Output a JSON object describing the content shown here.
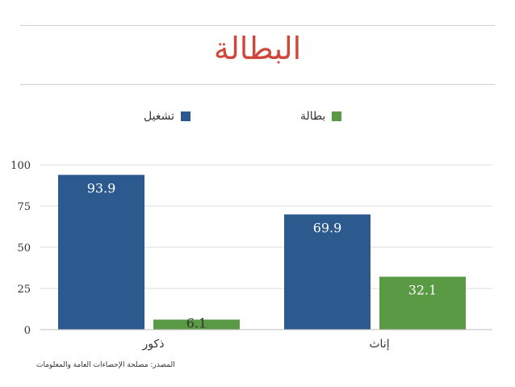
{
  "title": "البطالة",
  "legend": [
    {
      "label": "تشغيل",
      "color": "#2d5a8e"
    },
    {
      "label": "بطالة",
      "color": "#5a9a44"
    }
  ],
  "source": "المصدر: مصلحة الإحصاءات العامة والمعلومات",
  "chart_data": {
    "type": "bar",
    "categories": [
      "ذكور",
      "إناث"
    ],
    "series": [
      {
        "name": "تشغيل",
        "color": "#2d5a8e",
        "values": [
          93.9,
          69.9
        ]
      },
      {
        "name": "بطالة",
        "color": "#5a9a44",
        "values": [
          6.1,
          32.1
        ]
      }
    ],
    "yticks": [
      "0",
      "25",
      "50",
      "75",
      "100"
    ],
    "ylim": [
      0,
      100
    ],
    "grid": true,
    "legend_position": "top"
  }
}
